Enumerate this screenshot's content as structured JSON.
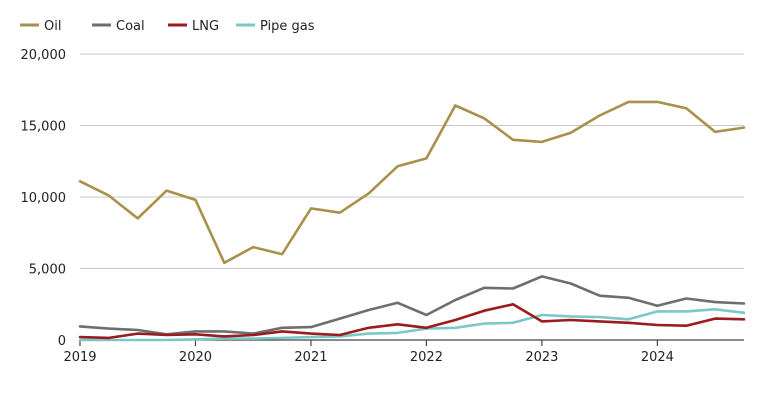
{
  "chart_data": {
    "type": "line",
    "x": [
      2019.0,
      2019.25,
      2019.5,
      2019.75,
      2020.0,
      2020.25,
      2020.5,
      2020.75,
      2021.0,
      2021.25,
      2021.5,
      2021.75,
      2022.0,
      2022.25,
      2022.5,
      2022.75,
      2023.0,
      2023.25,
      2023.5,
      2023.75,
      2024.0,
      2024.25,
      2024.5,
      2024.75
    ],
    "x_ticks": [
      {
        "value": 2019,
        "label": "2019"
      },
      {
        "value": 2020,
        "label": "2020"
      },
      {
        "value": 2021,
        "label": "2021"
      },
      {
        "value": 2022,
        "label": "2022"
      },
      {
        "value": 2023,
        "label": "2023"
      },
      {
        "value": 2024,
        "label": "2024"
      }
    ],
    "y_ticks": [
      {
        "value": 0,
        "label": "0"
      },
      {
        "value": 5000,
        "label": "5,000"
      },
      {
        "value": 10000,
        "label": "10,000"
      },
      {
        "value": 15000,
        "label": "15,000"
      },
      {
        "value": 20000,
        "label": "20,000"
      }
    ],
    "xlim": [
      2019.0,
      2024.75
    ],
    "ylim": [
      0,
      20000
    ],
    "grid": "horizontal",
    "legend_position": "top-left",
    "series": [
      {
        "name": "Oil",
        "color": "#a8914a",
        "values": [
          11100,
          10100,
          8500,
          10450,
          9800,
          5400,
          6500,
          6000,
          9200,
          8900,
          10250,
          12150,
          12700,
          16400,
          15500,
          14000,
          13850,
          14500,
          15700,
          16650,
          16650,
          16200,
          14550,
          14850
        ]
      },
      {
        "name": "Coal",
        "color": "#6e6e6e",
        "values": [
          950,
          800,
          700,
          400,
          600,
          600,
          450,
          850,
          900,
          1500,
          2100,
          2600,
          1750,
          2800,
          3650,
          3600,
          4450,
          3950,
          3100,
          2950,
          2400,
          2900,
          2650,
          2550
        ]
      },
      {
        "name": "LNG",
        "color": "#9b1b1e",
        "values": [
          200,
          150,
          450,
          350,
          400,
          250,
          350,
          600,
          450,
          350,
          850,
          1100,
          850,
          1400,
          2050,
          2500,
          1300,
          1400,
          1300,
          1200,
          1050,
          1000,
          1500,
          1450
        ]
      },
      {
        "name": "Pipe gas",
        "color": "#7cc8c8",
        "values": [
          0,
          0,
          0,
          0,
          50,
          100,
          100,
          150,
          200,
          250,
          450,
          500,
          800,
          850,
          1150,
          1200,
          1750,
          1650,
          1600,
          1450,
          2000,
          2000,
          2150,
          1900
        ]
      }
    ]
  }
}
